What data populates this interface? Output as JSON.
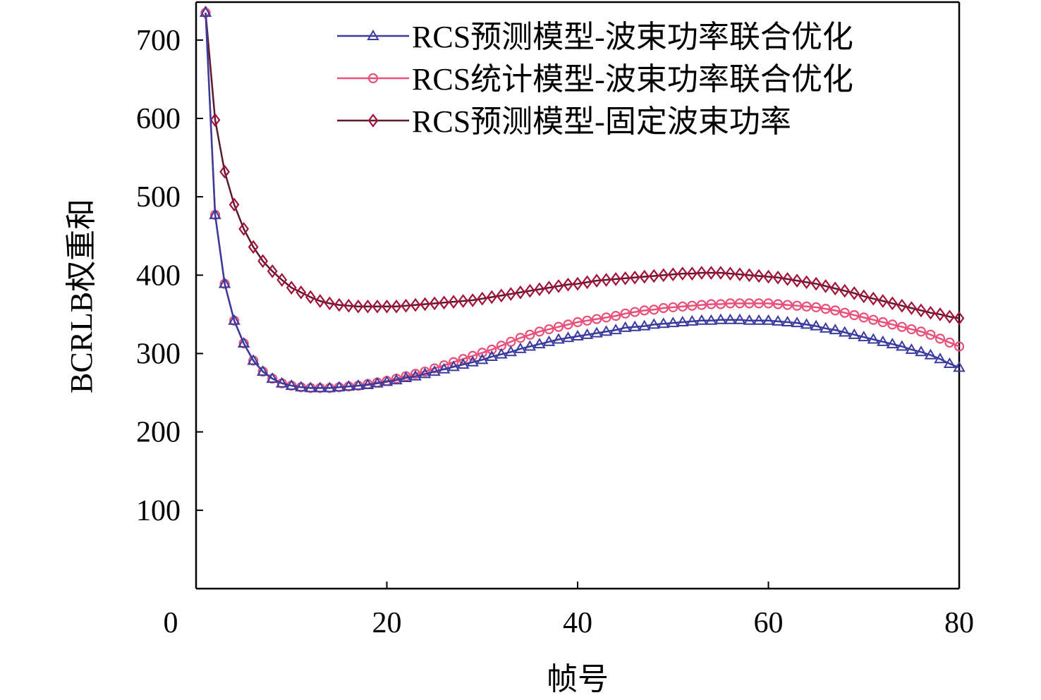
{
  "chart_data": {
    "type": "line",
    "title": "",
    "xlabel": "帧号",
    "ylabel": "BCRLB权重和",
    "xlim": [
      0,
      80
    ],
    "ylim": [
      0,
      700
    ],
    "xticks": [
      0,
      20,
      40,
      60,
      80
    ],
    "yticks": [
      100,
      200,
      300,
      400,
      500,
      600,
      700
    ],
    "grid": false,
    "legend_position": "top-right",
    "x": [
      1,
      2,
      3,
      4,
      5,
      6,
      7,
      8,
      9,
      10,
      11,
      12,
      13,
      14,
      15,
      16,
      17,
      18,
      19,
      20,
      21,
      22,
      23,
      24,
      25,
      26,
      27,
      28,
      29,
      30,
      31,
      32,
      33,
      34,
      35,
      36,
      37,
      38,
      39,
      40,
      41,
      42,
      43,
      44,
      45,
      46,
      47,
      48,
      49,
      50,
      51,
      52,
      53,
      54,
      55,
      56,
      57,
      58,
      59,
      60,
      61,
      62,
      63,
      64,
      65,
      66,
      67,
      68,
      69,
      70,
      71,
      72,
      73,
      74,
      75,
      76,
      77,
      78,
      79,
      80
    ],
    "series": [
      {
        "name": "RCS预测模型-波束功率联合优化",
        "marker": "triangle",
        "color": "#3b3b9e",
        "line_color": "#3b3b9e",
        "values": [
          735,
          477,
          389,
          342,
          313,
          291,
          277,
          268,
          262,
          259,
          257,
          256,
          256,
          256,
          257,
          258,
          259,
          260,
          262,
          264,
          266,
          269,
          271,
          274,
          277,
          280,
          283,
          286,
          289,
          292,
          296,
          299,
          302,
          306,
          309,
          312,
          315,
          318,
          320,
          322,
          324,
          326,
          328,
          330,
          333,
          334,
          335,
          337,
          338,
          339,
          340,
          341,
          342,
          342,
          343,
          343,
          343,
          342,
          342,
          342,
          341,
          340,
          339,
          337,
          335,
          332,
          330,
          327,
          324,
          321,
          318,
          315,
          312,
          309,
          305,
          302,
          298,
          293,
          287,
          282
        ]
      },
      {
        "name": "RCS统计模型-波束功率联合优化",
        "marker": "circle",
        "color": "#e8507a",
        "line_color": "#e8507a",
        "values": [
          735,
          477,
          389,
          342,
          313,
          291,
          277,
          268,
          262,
          259,
          257,
          256,
          256,
          256,
          257,
          258,
          259,
          261,
          263,
          265,
          268,
          271,
          274,
          277,
          281,
          285,
          289,
          293,
          297,
          301,
          305,
          310,
          315,
          320,
          324,
          328,
          331,
          334,
          337,
          340,
          342,
          344,
          346,
          348,
          351,
          353,
          355,
          356,
          358,
          359,
          360,
          361,
          362,
          363,
          363,
          364,
          364,
          364,
          364,
          364,
          363,
          362,
          361,
          360,
          359,
          357,
          355,
          352,
          349,
          346,
          343,
          340,
          337,
          334,
          331,
          328,
          324,
          319,
          314,
          309
        ]
      },
      {
        "name": "RCS预测模型-固定波束功率",
        "marker": "diamond",
        "color": "#a0103a",
        "line_color": "#5a1a2a",
        "values": [
          735,
          598,
          532,
          490,
          459,
          436,
          418,
          405,
          394,
          384,
          378,
          372,
          367,
          364,
          362,
          361,
          360,
          360,
          360,
          360,
          360,
          361,
          362,
          363,
          364,
          365,
          366,
          367,
          368,
          370,
          372,
          374,
          376,
          378,
          380,
          382,
          384,
          386,
          388,
          389,
          391,
          393,
          394,
          395,
          396,
          397,
          398,
          399,
          400,
          401,
          402,
          402,
          403,
          403,
          403,
          402,
          401,
          400,
          399,
          398,
          397,
          395,
          393,
          391,
          389,
          386,
          383,
          380,
          377,
          373,
          370,
          367,
          364,
          361,
          358,
          355,
          352,
          350,
          347,
          345
        ]
      }
    ]
  }
}
